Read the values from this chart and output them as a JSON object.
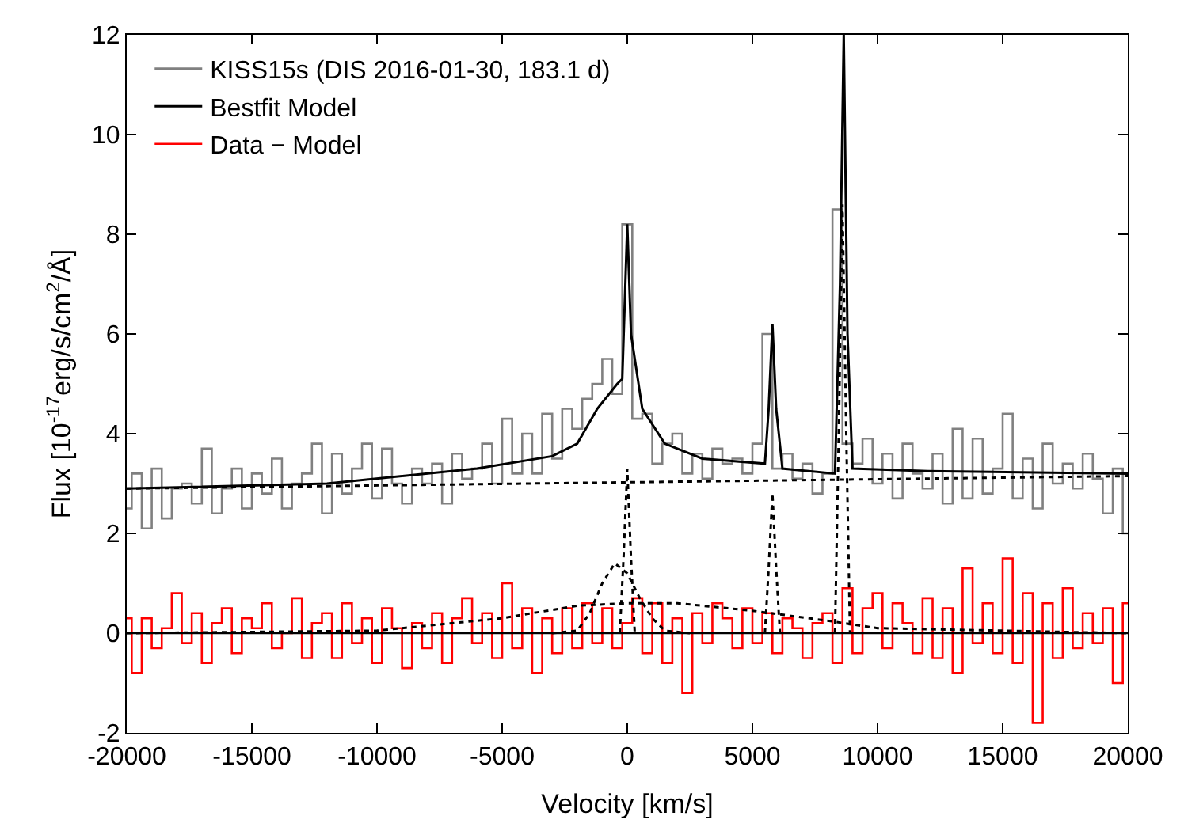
{
  "chart_data": {
    "type": "step",
    "xlabel": "Velocity [km/s]",
    "ylabel": "Flux [10$^{-17}$erg/s/cm$^{2}$/Å]",
    "xlim": [
      -20000,
      20000
    ],
    "xticks": [
      -20000,
      -15000,
      -10000,
      -5000,
      0,
      5000,
      10000,
      15000,
      20000
    ],
    "ylim": [
      -2,
      12
    ],
    "yticks": [
      -2,
      0,
      2,
      4,
      6,
      8,
      10,
      12
    ],
    "grid": false,
    "legend": "top left",
    "marker": "none",
    "x": [
      -20000,
      -19600,
      -19200,
      -18800,
      -18400,
      -18000,
      -17600,
      -17200,
      -16800,
      -16400,
      -16000,
      -15600,
      -15200,
      -14800,
      -14400,
      -14000,
      -13600,
      -13200,
      -12800,
      -12400,
      -12000,
      -11600,
      -11200,
      -10800,
      -10400,
      -10000,
      -9600,
      -9200,
      -8800,
      -8400,
      -8000,
      -7600,
      -7200,
      -6800,
      -6400,
      -6000,
      -5600,
      -5200,
      -4800,
      -4400,
      -4000,
      -3600,
      -3200,
      -2800,
      -2400,
      -2000,
      -1600,
      -1200,
      -800,
      -400,
      0,
      400,
      800,
      1200,
      1600,
      2000,
      2400,
      2800,
      3200,
      3600,
      4000,
      4400,
      4800,
      5200,
      5600,
      6000,
      6400,
      6800,
      7200,
      7600,
      8000,
      8400,
      8800,
      9200,
      9600,
      10000,
      10400,
      10800,
      11200,
      11600,
      12000,
      12400,
      12800,
      13200,
      13600,
      14000,
      14400,
      14800,
      15200,
      15600,
      16000,
      16400,
      16800,
      17200,
      17600,
      18000,
      18400,
      18800,
      19200,
      19600,
      20000
    ],
    "ref_lines": [
      {
        "axis": "y",
        "value": 0,
        "color": "#000000",
        "line_style": "solid"
      }
    ],
    "series": [
      {
        "name": "KISS15s (DIS 2016-01-30, 183.1 d)",
        "color": "#808080",
        "values": [
          2.5,
          3.2,
          2.1,
          3.3,
          2.3,
          2.9,
          3.0,
          2.6,
          3.7,
          2.4,
          2.9,
          3.3,
          2.5,
          3.2,
          2.8,
          3.5,
          2.5,
          3.0,
          3.2,
          3.8,
          2.4,
          3.6,
          2.8,
          3.3,
          3.8,
          2.7,
          3.7,
          3.0,
          2.6,
          3.3,
          3.0,
          3.4,
          2.6,
          3.6,
          3.1,
          3.3,
          3.8,
          3.0,
          4.3,
          3.2,
          4.0,
          3.2,
          4.4,
          3.5,
          4.5,
          4.1,
          4.7,
          5.0,
          5.5,
          4.8,
          8.2,
          4.3,
          4.4,
          3.4,
          3.8,
          4.0,
          3.2,
          3.6,
          3.1,
          3.7,
          3.4,
          3.5,
          3.2,
          3.8,
          6.0,
          3.3,
          3.6,
          3.1,
          3.4,
          2.8,
          3.2,
          8.5,
          3.8,
          3.4,
          3.9,
          3.0,
          3.6,
          2.7,
          3.8,
          3.2,
          2.9,
          3.6,
          2.6,
          4.1,
          2.7,
          3.9,
          2.8,
          3.3,
          4.4,
          2.7,
          3.5,
          2.5,
          3.8,
          3.0,
          3.4,
          2.9,
          3.6,
          3.1,
          2.4,
          3.3,
          2.0
        ]
      },
      {
        "name": "Bestfit Model",
        "type": "line",
        "color": "#000000",
        "x": [
          -20000,
          -12000,
          -6000,
          -3000,
          -2000,
          -1200,
          -400,
          -200,
          0,
          150,
          600,
          1500,
          3000,
          5500,
          5650,
          5800,
          5950,
          6200,
          8300,
          8500,
          8650,
          8800,
          9000,
          12000,
          20000
        ],
        "values": [
          2.9,
          3.0,
          3.3,
          3.55,
          3.8,
          4.5,
          5.0,
          5.1,
          8.2,
          6.0,
          4.5,
          3.8,
          3.5,
          3.4,
          4.5,
          6.2,
          4.5,
          3.3,
          3.2,
          7.0,
          12,
          6.0,
          3.3,
          3.25,
          3.2
        ]
      },
      {
        "name": "Data − Model",
        "color": "#ff0000",
        "values": [
          0.3,
          -0.8,
          0.3,
          -0.3,
          0.1,
          0.8,
          -0.2,
          0.4,
          -0.6,
          0.2,
          0.5,
          -0.4,
          0.3,
          0.1,
          0.6,
          -0.3,
          0.0,
          0.7,
          -0.5,
          0.2,
          0.4,
          -0.5,
          0.6,
          -0.2,
          0.3,
          -0.6,
          0.5,
          0.1,
          -0.7,
          0.2,
          -0.3,
          0.4,
          -0.6,
          0.3,
          0.7,
          -0.2,
          0.4,
          -0.5,
          1.0,
          -0.3,
          0.5,
          -0.8,
          0.3,
          -0.4,
          0.5,
          -0.3,
          0.6,
          -0.2,
          0.5,
          -0.3,
          0.2,
          0.7,
          -0.4,
          0.6,
          -0.6,
          0.3,
          -1.2,
          0.4,
          -0.2,
          0.6,
          0.3,
          -0.3,
          0.5,
          -0.2,
          0.4,
          -0.4,
          0.3,
          0.1,
          -0.5,
          0.2,
          0.4,
          -0.6,
          0.9,
          -0.4,
          0.5,
          0.8,
          -0.3,
          0.6,
          0.2,
          -0.4,
          0.7,
          -0.5,
          0.5,
          -0.8,
          1.3,
          -0.2,
          0.6,
          -0.4,
          1.5,
          -0.6,
          0.8,
          -1.8,
          0.6,
          -0.5,
          0.9,
          -0.3,
          0.4,
          -0.2,
          0.5,
          -1.0,
          0.6
        ]
      },
      {
        "type": "line",
        "line_style": "dotted",
        "color": "#000000",
        "x": [
          -20000,
          20000
        ],
        "values": [
          2.9,
          3.15
        ]
      },
      {
        "type": "line",
        "line_style": "dotted",
        "color": "#000000",
        "x": [
          -20000,
          -10000,
          -5000,
          -2000,
          0,
          2000,
          5000,
          8000,
          10000,
          20000
        ],
        "values": [
          0,
          0.05,
          0.3,
          0.55,
          0.6,
          0.6,
          0.45,
          0.25,
          0.1,
          0
        ]
      },
      {
        "type": "line",
        "line_style": "dotted",
        "color": "#000000",
        "x": [
          -3000,
          -2000,
          -1500,
          -1000,
          -500,
          0,
          500,
          1000,
          1500,
          2500
        ],
        "values": [
          0,
          0.05,
          0.4,
          1.0,
          1.4,
          1.2,
          0.7,
          0.3,
          0.05,
          0
        ]
      },
      {
        "type": "line",
        "line_style": "dotted",
        "color": "#000000",
        "x": [
          -300,
          -150,
          0,
          150,
          300
        ],
        "values": [
          0,
          1.5,
          3.3,
          1.5,
          0
        ]
      },
      {
        "type": "line",
        "line_style": "dotted",
        "color": "#000000",
        "x": [
          5500,
          5650,
          5800,
          5950,
          6100
        ],
        "values": [
          0,
          1.3,
          2.8,
          1.3,
          0
        ]
      },
      {
        "type": "line",
        "line_style": "dotted",
        "color": "#000000",
        "x": [
          8300,
          8450,
          8600,
          8750,
          8900
        ],
        "values": [
          0,
          4.0,
          8.6,
          4.0,
          0
        ]
      }
    ]
  }
}
